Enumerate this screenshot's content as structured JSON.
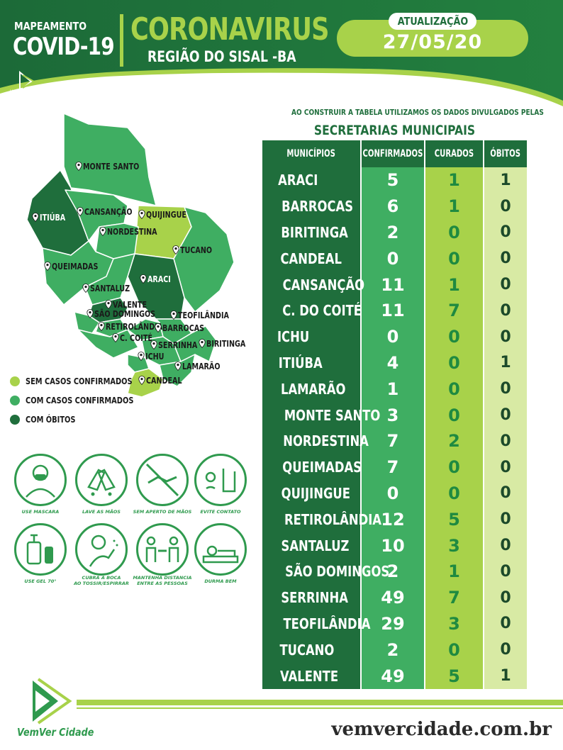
{
  "header": {
    "mapeamento": "MAPEAMENTO",
    "covid": "COVID-19",
    "title": "CORONAVIRUS",
    "subtitle": "REGIÃO DO SISAL -BA",
    "update_label": "ATUALIZAÇÃO",
    "update_date": "27/05/20",
    "small_logo_text": "VemVer Cidade"
  },
  "colors": {
    "dark_green": "#1f6e3c",
    "medium_green": "#3fae62",
    "light_green": "#a8d24a",
    "pale_green": "#d8eaa4"
  },
  "note": {
    "line1": "AO CONSTRUIR A TABELA UTILIZAMOS OS DADOS DIVULGADOS PELAS",
    "line2": "SECRETARIAS MUNICIPAIS"
  },
  "table": {
    "headers": [
      "MUNICÍPIOS",
      "CONFIRMADOS",
      "CURADOS",
      "ÓBITOS"
    ],
    "rows": [
      {
        "municipio": "ARACI",
        "confirmados": "5",
        "curados": "1",
        "obitos": "1"
      },
      {
        "municipio": "BARROCAS",
        "confirmados": "6",
        "curados": "1",
        "obitos": "0"
      },
      {
        "municipio": "BIRITINGA",
        "confirmados": "2",
        "curados": "0",
        "obitos": "0"
      },
      {
        "municipio": "CANDEAL",
        "confirmados": "0",
        "curados": "0",
        "obitos": "0"
      },
      {
        "municipio": "CANSANÇÃO",
        "confirmados": "11",
        "curados": "1",
        "obitos": "0"
      },
      {
        "municipio": "C. DO COITÉ",
        "confirmados": "11",
        "curados": "7",
        "obitos": "0"
      },
      {
        "municipio": "ICHU",
        "confirmados": "0",
        "curados": "0",
        "obitos": "0"
      },
      {
        "municipio": "ITIÚBA",
        "confirmados": "4",
        "curados": "0",
        "obitos": "1"
      },
      {
        "municipio": "LAMARÃO",
        "confirmados": "1",
        "curados": "0",
        "obitos": "0"
      },
      {
        "municipio": "MONTE SANTO",
        "confirmados": "3",
        "curados": "0",
        "obitos": "0"
      },
      {
        "municipio": "NORDESTINA",
        "confirmados": "7",
        "curados": "2",
        "obitos": "0"
      },
      {
        "municipio": "QUEIMADAS",
        "confirmados": "7",
        "curados": "0",
        "obitos": "0"
      },
      {
        "municipio": "QUIJINGUE",
        "confirmados": "0",
        "curados": "0",
        "obitos": "0"
      },
      {
        "municipio": "RETIROLÂNDIA",
        "confirmados": "12",
        "curados": "5",
        "obitos": "0"
      },
      {
        "municipio": "SANTALUZ",
        "confirmados": "10",
        "curados": "3",
        "obitos": "0"
      },
      {
        "municipio": "SÃO DOMINGOS",
        "confirmados": "2",
        "curados": "1",
        "obitos": "0"
      },
      {
        "municipio": "SERRINHA",
        "confirmados": "49",
        "curados": "7",
        "obitos": "0"
      },
      {
        "municipio": "TEOFILÂNDIA",
        "confirmados": "29",
        "curados": "3",
        "obitos": "0"
      },
      {
        "municipio": "TUCANO",
        "confirmados": "2",
        "curados": "0",
        "obitos": "0"
      },
      {
        "municipio": "VALENTE",
        "confirmados": "49",
        "curados": "5",
        "obitos": "1"
      }
    ]
  },
  "map": {
    "labels": {
      "monte_santo": "MONTE SANTO",
      "itiuba": "ITIÚBA",
      "cansancao": "CANSANÇÃO",
      "quijingue": "QUIJINGUE",
      "nordestina": "NORDESTINA",
      "tucano": "TUCANO",
      "queimadas": "QUEIMADAS",
      "araci": "ARACI",
      "santaluz": "SANTALUZ",
      "valente": "VALENTE",
      "sao_domingos": "SÃO DOMINGOS",
      "teofilandia": "TEOFILÂNDIA",
      "retirolandia": "RETIROLÂNDIA",
      "barrocas": "BARROCAS",
      "c_coite": "C. COITÉ",
      "serrinha": "SERRINHA",
      "biritinga": "BIRITINGA",
      "ichu": "ICHU",
      "lamarao": "LAMARÃO",
      "candeal": "CANDEAL"
    }
  },
  "legend": [
    {
      "label": "SEM CASOS CONFIRMADOS",
      "color": "#a8d24a"
    },
    {
      "label": "COM CASOS CONFIRMADOS",
      "color": "#3fae62"
    },
    {
      "label": "COM ÓBITOS",
      "color": "#1f6e3c"
    }
  ],
  "prevention": {
    "mask": "USE MASCARA",
    "wash": "LAVE AS MÃOS",
    "no_handshake": "SEM APERTO DE MÃOS",
    "avoid_contact": "EVITE CONTATO",
    "gel": "USE GEL 70°",
    "cover_mouth_1": "CUBRA A BOCA",
    "cover_mouth_2": "AO TOSSIR/ESPIRRAR",
    "distance_1": "MANTENHA DISTANCIA",
    "distance_2": "ENTRE AS PESSOAS",
    "sleep": "DURMA BEM"
  },
  "footer": {
    "logo_text": "VemVer Cidade",
    "url": "vemvercidade.com.br"
  }
}
